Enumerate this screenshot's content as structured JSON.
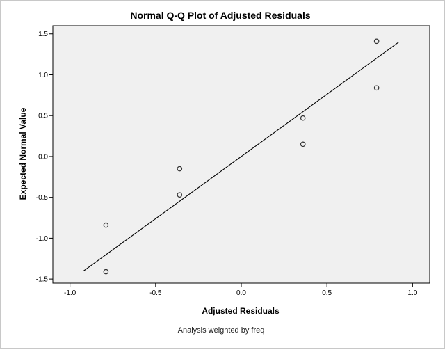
{
  "chart_data": {
    "type": "scatter",
    "title": "Normal Q-Q Plot of Adjusted Residuals",
    "xlabel": "Adjusted Residuals",
    "ylabel": "Expected Normal Value",
    "footnote": "Analysis weighted by freq",
    "xlim": [
      -1.1,
      1.1
    ],
    "ylim": [
      -1.55,
      1.6
    ],
    "x_ticks": [
      -1.0,
      -0.5,
      0.0,
      0.5,
      1.0
    ],
    "x_tick_labels": [
      "-1.0",
      "-0.5",
      "0.0",
      "0.5",
      "1.0"
    ],
    "y_ticks": [
      -1.5,
      -1.0,
      -0.5,
      0.0,
      0.5,
      1.0,
      1.5
    ],
    "y_tick_labels": [
      "-1.5",
      "-1.0",
      "-0.5",
      "0.0",
      "0.5",
      "1.0",
      "1.5"
    ],
    "grid": false,
    "colors": {
      "plot_background": "#f0f0f0",
      "frame": "#000000",
      "marker": "#333333",
      "line": "#000000"
    },
    "points": [
      {
        "x": -0.79,
        "y": -1.41
      },
      {
        "x": -0.79,
        "y": -0.84
      },
      {
        "x": -0.36,
        "y": -0.47
      },
      {
        "x": -0.36,
        "y": -0.15
      },
      {
        "x": 0.36,
        "y": 0.15
      },
      {
        "x": 0.36,
        "y": 0.47
      },
      {
        "x": 0.79,
        "y": 0.84
      },
      {
        "x": 0.79,
        "y": 1.41
      }
    ],
    "reference_line": {
      "x1": -0.92,
      "y1": -1.4,
      "x2": 0.92,
      "y2": 1.4
    }
  }
}
